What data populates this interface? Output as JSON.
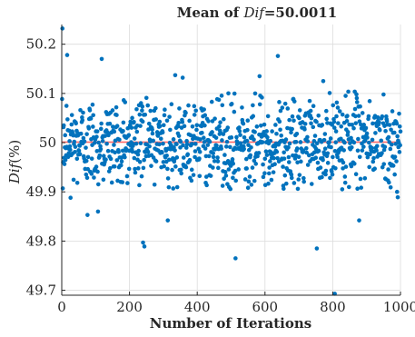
{
  "chart_data": {
    "type": "scatter",
    "title_prefix": "Mean of ",
    "title_variable": "Dif",
    "title_suffix": "=50.0011",
    "xlabel": "Number of Iterations",
    "ylabel_variable": "Dif",
    "ylabel_unit": "(%)",
    "xlim": [
      0,
      1000
    ],
    "ylim": [
      49.69,
      50.24
    ],
    "xticks": [
      0,
      200,
      400,
      600,
      800,
      1000
    ],
    "xtick_labels": [
      "0",
      "200",
      "400",
      "600",
      "800",
      "1000"
    ],
    "yticks": [
      49.7,
      49.8,
      49.9,
      50.0,
      50.1,
      50.2
    ],
    "ytick_labels": [
      "49.7",
      "49.8",
      "49.9",
      "50",
      "50.1",
      "50.2"
    ],
    "grid": true,
    "mean_line_value": 50.0011,
    "colors": {
      "points": "#0072bd",
      "mean_line": "#ff6b6b",
      "grid": "#dcdcdc",
      "axes": "#262626"
    },
    "series_count": 1000,
    "seed": 12345,
    "series_spread_sd": 0.045,
    "notable_points": [
      {
        "x": 2,
        "y": 50.232
      },
      {
        "x": 16,
        "y": 50.178
      },
      {
        "x": 118,
        "y": 50.17
      },
      {
        "x": 638,
        "y": 50.176
      },
      {
        "x": 240,
        "y": 49.797
      },
      {
        "x": 244,
        "y": 49.789
      },
      {
        "x": 513,
        "y": 49.765
      },
      {
        "x": 753,
        "y": 49.785
      },
      {
        "x": 806,
        "y": 49.693
      },
      {
        "x": 878,
        "y": 49.842
      },
      {
        "x": 313,
        "y": 49.842
      },
      {
        "x": 76,
        "y": 49.853
      },
      {
        "x": 107,
        "y": 49.86
      },
      {
        "x": 990,
        "y": 49.9
      },
      {
        "x": 992,
        "y": 49.889
      },
      {
        "x": 26,
        "y": 49.888
      },
      {
        "x": 335,
        "y": 50.137
      },
      {
        "x": 357,
        "y": 50.132
      },
      {
        "x": 584,
        "y": 50.135
      },
      {
        "x": 772,
        "y": 50.125
      }
    ]
  }
}
